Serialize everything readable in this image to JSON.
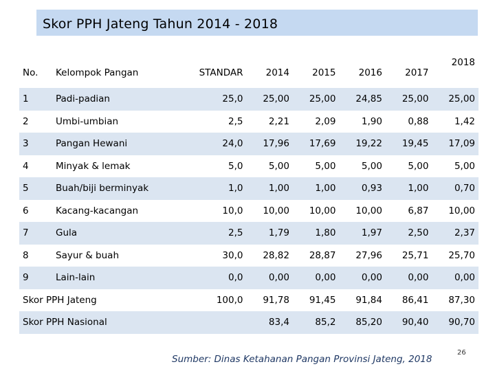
{
  "title": "Skor PPH Jateng Tahun 2014 - 2018",
  "headers": {
    "no": "No.",
    "kelompok": "Kelompok Pangan",
    "standar": "STANDAR",
    "y2014": "2014",
    "y2015": "2015",
    "y2016": "2016",
    "y2017": "2017",
    "y2018": "2018"
  },
  "rows": [
    {
      "no": "1",
      "kelompok": "Padi-padian",
      "standar": "25,0",
      "y2014": "25,00",
      "y2015": "25,00",
      "y2016": "24,85",
      "y2017": "25,00",
      "y2018": "25,00"
    },
    {
      "no": "2",
      "kelompok": "Umbi-umbian",
      "standar": "2,5",
      "y2014": "2,21",
      "y2015": "2,09",
      "y2016": "1,90",
      "y2017": "0,88",
      "y2018": "1,42"
    },
    {
      "no": "3",
      "kelompok": "Pangan Hewani",
      "standar": "24,0",
      "y2014": "17,96",
      "y2015": "17,69",
      "y2016": "19,22",
      "y2017": "19,45",
      "y2018": "17,09"
    },
    {
      "no": "4",
      "kelompok": "Minyak & lemak",
      "standar": "5,0",
      "y2014": "5,00",
      "y2015": "5,00",
      "y2016": "5,00",
      "y2017": "5,00",
      "y2018": "5,00"
    },
    {
      "no": "5",
      "kelompok": "Buah/biji berminyak",
      "standar": "1,0",
      "y2014": "1,00",
      "y2015": "1,00",
      "y2016": "0,93",
      "y2017": "1,00",
      "y2018": "0,70"
    },
    {
      "no": "6",
      "kelompok": "Kacang-kacangan",
      "standar": "10,0",
      "y2014": "10,00",
      "y2015": "10,00",
      "y2016": "10,00",
      "y2017": "6,87",
      "y2018": "10,00"
    },
    {
      "no": "7",
      "kelompok": "Gula",
      "standar": "2,5",
      "y2014": "1,79",
      "y2015": "1,80",
      "y2016": "1,97",
      "y2017": "2,50",
      "y2018": "2,37"
    },
    {
      "no": "8",
      "kelompok": "Sayur & buah",
      "standar": "30,0",
      "y2014": "28,82",
      "y2015": "28,87",
      "y2016": "27,96",
      "y2017": "25,71",
      "y2018": "25,70"
    },
    {
      "no": "9",
      "kelompok": "Lain-lain",
      "standar": "0,0",
      "y2014": "0,00",
      "y2015": "0,00",
      "y2016": "0,00",
      "y2017": "0,00",
      "y2018": "0,00"
    }
  ],
  "skor_jateng": {
    "label": "Skor PPH Jateng",
    "standar": "100,0",
    "y2014": "91,78",
    "y2015": "91,45",
    "y2016": "91,84",
    "y2017": "86,41",
    "y2018": "87,30"
  },
  "skor_nasional": {
    "label": "Skor PPH Nasional",
    "standar": "",
    "y2014": "83,4",
    "y2015": "85,2",
    "y2016": "85,20",
    "y2017": "90,40",
    "y2018": "90,70"
  },
  "source": "Sumber: Dinas Ketahanan Pangan Provinsi Jateng, 2018",
  "page_number": "26",
  "colors": {
    "title_bar": "#c5d9f1",
    "row_band": "#dbe5f1",
    "source_text": "#1f3864"
  }
}
